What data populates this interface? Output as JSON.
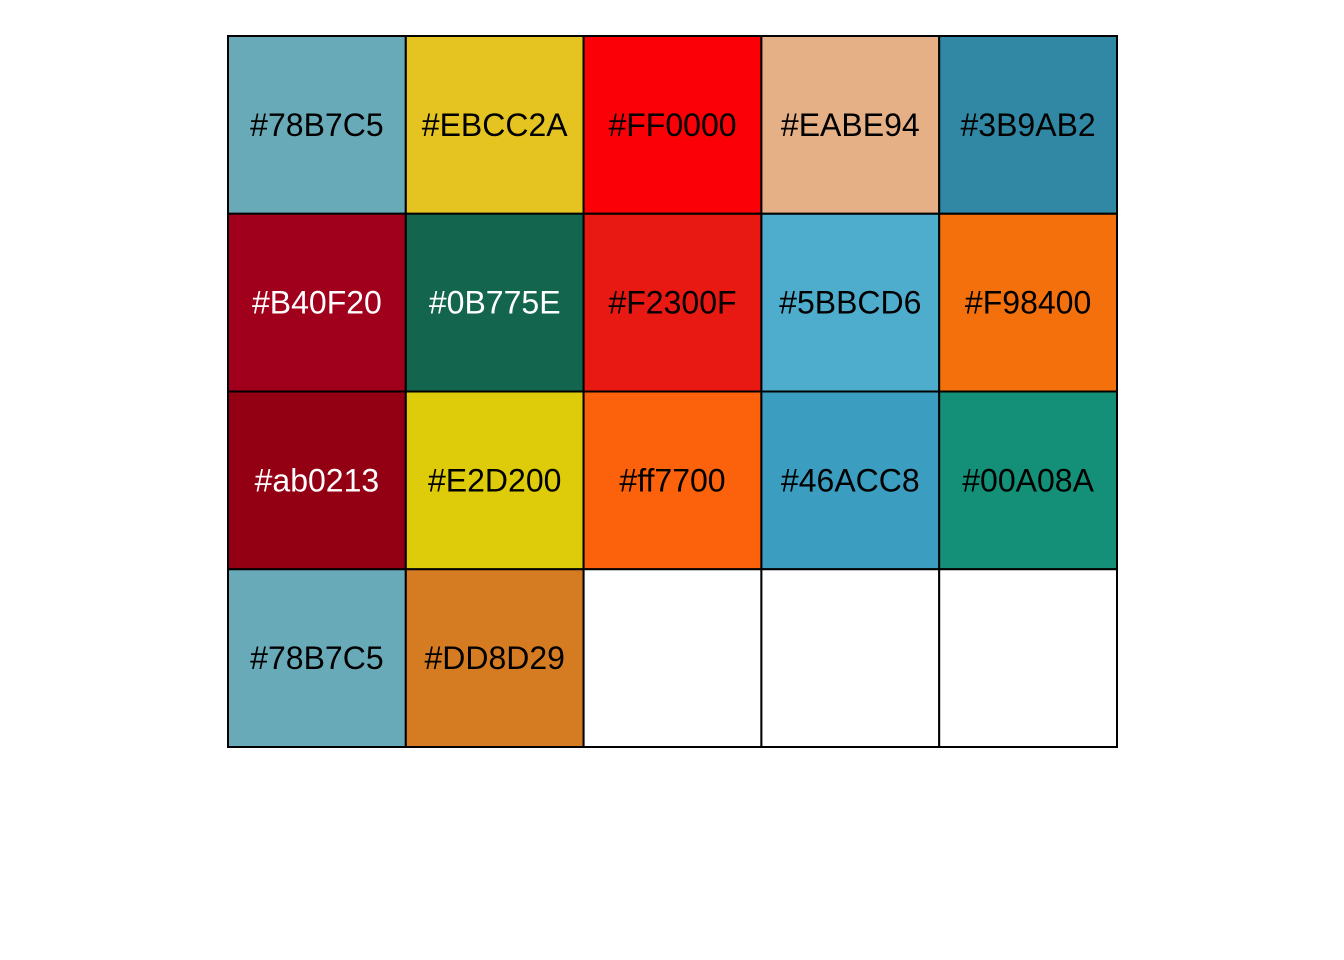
{
  "chart_data": {
    "type": "table",
    "columns": 5,
    "rows": 4,
    "cells": [
      {
        "label": "#78B7C5",
        "fill": "#69AAB9",
        "text_color": "#000000"
      },
      {
        "label": "#EBCC2A",
        "fill": "#E5C421",
        "text_color": "#000000"
      },
      {
        "label": "#FF0000",
        "fill": "#FB0007",
        "text_color": "#000000"
      },
      {
        "label": "#EABE94",
        "fill": "#E5B086",
        "text_color": "#000000"
      },
      {
        "label": "#3B9AB2",
        "fill": "#3088A5",
        "text_color": "#000000"
      },
      {
        "label": "#B40F20",
        "fill": "#A0001B",
        "text_color": "#ffffff"
      },
      {
        "label": "#0B775E",
        "fill": "#13664D",
        "text_color": "#ffffff"
      },
      {
        "label": "#F2300F",
        "fill": "#E81812",
        "text_color": "#000000"
      },
      {
        "label": "#5BBCD6",
        "fill": "#4EADCD",
        "text_color": "#000000"
      },
      {
        "label": "#F98400",
        "fill": "#F3700C",
        "text_color": "#000000"
      },
      {
        "label": "#ab0213",
        "fill": "#940013",
        "text_color": "#ffffff"
      },
      {
        "label": "#E2D200",
        "fill": "#DECC0A",
        "text_color": "#000000"
      },
      {
        "label": "#ff7700",
        "fill": "#FC610B",
        "text_color": "#000000"
      },
      {
        "label": "#46ACC8",
        "fill": "#3B9DBF",
        "text_color": "#000000"
      },
      {
        "label": "#00A08A",
        "fill": "#139077",
        "text_color": "#000000"
      },
      {
        "label": "#78B7C5",
        "fill": "#69AAB9",
        "text_color": "#000000"
      },
      {
        "label": "#DD8D29",
        "fill": "#D57B22",
        "text_color": "#000000"
      },
      {
        "label": "",
        "fill": "#ffffff",
        "text_color": "#000000"
      },
      {
        "label": "",
        "fill": "#ffffff",
        "text_color": "#000000"
      },
      {
        "label": "",
        "fill": "#ffffff",
        "text_color": "#000000"
      }
    ]
  }
}
